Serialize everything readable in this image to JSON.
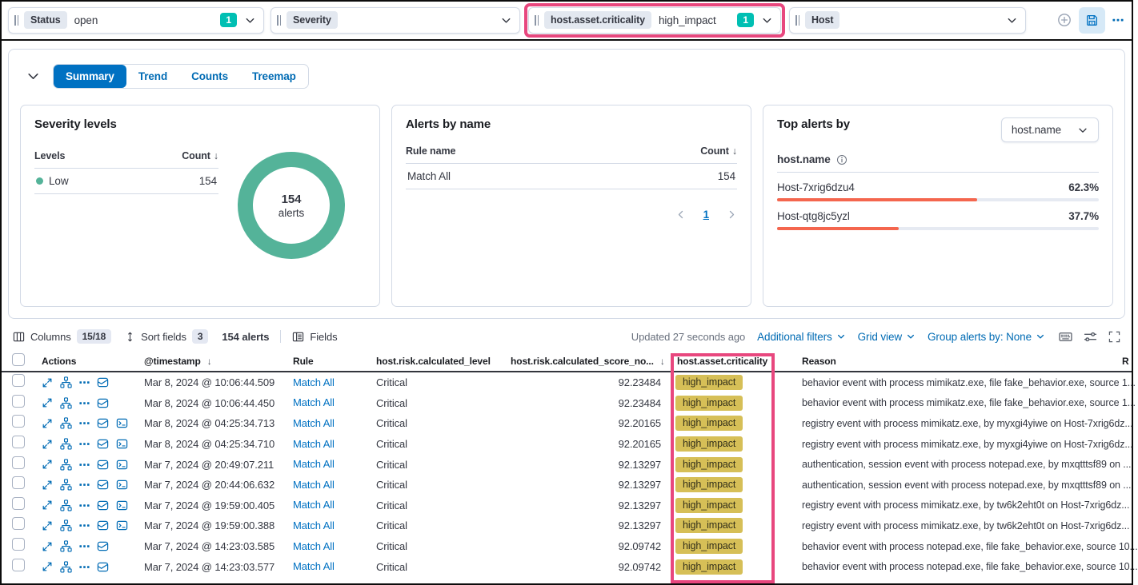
{
  "colors": {
    "accent_blue": "#0071c2",
    "link_blue": "#006bb4",
    "teal": "#00bfb3",
    "donut_green": "#54b399",
    "bar_orange": "#f4664e",
    "badge_gold": "#d6bf57",
    "annotation_pink": "#e8477e",
    "border": "#d3dae6",
    "text": "#343741",
    "text_subdued": "#69707d"
  },
  "filters": {
    "status": {
      "label": "Status",
      "value": "open",
      "badge": "1"
    },
    "severity": {
      "label": "Severity",
      "value": ""
    },
    "criticality": {
      "label": "host.asset.criticality",
      "value": "high_impact",
      "badge": "1",
      "highlighted": true
    },
    "host": {
      "label": "Host",
      "value": ""
    }
  },
  "view_tabs": {
    "items": [
      {
        "label": "Summary",
        "active": true
      },
      {
        "label": "Trend",
        "active": false
      },
      {
        "label": "Counts",
        "active": false
      },
      {
        "label": "Treemap",
        "active": false
      }
    ]
  },
  "severity_panel": {
    "title": "Severity levels",
    "col_levels": "Levels",
    "col_count": "Count",
    "row": {
      "level": "Low",
      "count": "154"
    },
    "donut": {
      "value": "154",
      "label": "alerts"
    }
  },
  "alerts_by_name_panel": {
    "title": "Alerts by name",
    "col_rule": "Rule name",
    "col_count": "Count",
    "row": {
      "rule": "Match All",
      "count": "154"
    },
    "pagination": {
      "page": "1"
    }
  },
  "top_alerts_panel": {
    "title": "Top alerts by",
    "selector": "host.name",
    "field": "host.name",
    "rows": [
      {
        "name": "Host-7xrig6dzu4",
        "pct": "62.3%",
        "pct_value": 62.3
      },
      {
        "name": "Host-qtg8jc5yzl",
        "pct": "37.7%",
        "pct_value": 37.7
      }
    ]
  },
  "toolbar": {
    "columns_label": "Columns",
    "columns_badge": "15/18",
    "sort_label": "Sort fields",
    "sort_badge": "3",
    "alert_count": "154 alerts",
    "fields_label": "Fields",
    "updated": "Updated 27 seconds ago",
    "additional_filters": "Additional filters",
    "grid_view": "Grid view",
    "group_by": "Group alerts by: None"
  },
  "table": {
    "headers": {
      "actions": "Actions",
      "timestamp": "@timestamp",
      "rule": "Rule",
      "level": "host.risk.calculated_level",
      "score": "host.risk.calculated_score_no...",
      "criticality": "host.asset.criticality",
      "reason": "Reason",
      "extra": "R"
    },
    "rows": [
      {
        "timestamp": "Mar 8, 2024 @ 10:06:44.509",
        "rule": "Match All",
        "level": "Critical",
        "score": "92.23484",
        "criticality": "high_impact",
        "reason": "behavior event with process mimikatz.exe, file fake_behavior.exe, source 1...",
        "session": false
      },
      {
        "timestamp": "Mar 8, 2024 @ 10:06:44.450",
        "rule": "Match All",
        "level": "Critical",
        "score": "92.23484",
        "criticality": "high_impact",
        "reason": "behavior event with process mimikatz.exe, file fake_behavior.exe, source 1...",
        "session": false
      },
      {
        "timestamp": "Mar 8, 2024 @ 04:25:34.713",
        "rule": "Match All",
        "level": "Critical",
        "score": "92.20165",
        "criticality": "high_impact",
        "reason": "registry event with process mimikatz.exe, by myxgi4yiwe on Host-7xrig6dz...",
        "session": true
      },
      {
        "timestamp": "Mar 8, 2024 @ 04:25:34.710",
        "rule": "Match All",
        "level": "Critical",
        "score": "92.20165",
        "criticality": "high_impact",
        "reason": "registry event with process mimikatz.exe, by myxgi4yiwe on Host-7xrig6dz...",
        "session": true
      },
      {
        "timestamp": "Mar 7, 2024 @ 20:49:07.211",
        "rule": "Match All",
        "level": "Critical",
        "score": "92.13297",
        "criticality": "high_impact",
        "reason": "authentication, session event with process notepad.exe, by mxqtttsf89 on ...",
        "session": true
      },
      {
        "timestamp": "Mar 7, 2024 @ 20:44:06.632",
        "rule": "Match All",
        "level": "Critical",
        "score": "92.13297",
        "criticality": "high_impact",
        "reason": "authentication, session event with process notepad.exe, by mxqtttsf89 on ...",
        "session": true
      },
      {
        "timestamp": "Mar 7, 2024 @ 19:59:00.405",
        "rule": "Match All",
        "level": "Critical",
        "score": "92.13297",
        "criticality": "high_impact",
        "reason": "registry event with process mimikatz.exe, by tw6k2eht0t on Host-7xrig6dz...",
        "session": true
      },
      {
        "timestamp": "Mar 7, 2024 @ 19:59:00.388",
        "rule": "Match All",
        "level": "Critical",
        "score": "92.13297",
        "criticality": "high_impact",
        "reason": "registry event with process mimikatz.exe, by tw6k2eht0t on Host-7xrig6dz...",
        "session": true
      },
      {
        "timestamp": "Mar 7, 2024 @ 14:23:03.585",
        "rule": "Match All",
        "level": "Critical",
        "score": "92.09742",
        "criticality": "high_impact",
        "reason": "behavior event with process notepad.exe, file fake_behavior.exe, source 10...",
        "session": false
      },
      {
        "timestamp": "Mar 7, 2024 @ 14:23:03.577",
        "rule": "Match All",
        "level": "Critical",
        "score": "92.09742",
        "criticality": "high_impact",
        "reason": "behavior event with process notepad.exe, file fake_behavior.exe, source 10...",
        "session": false
      }
    ]
  }
}
